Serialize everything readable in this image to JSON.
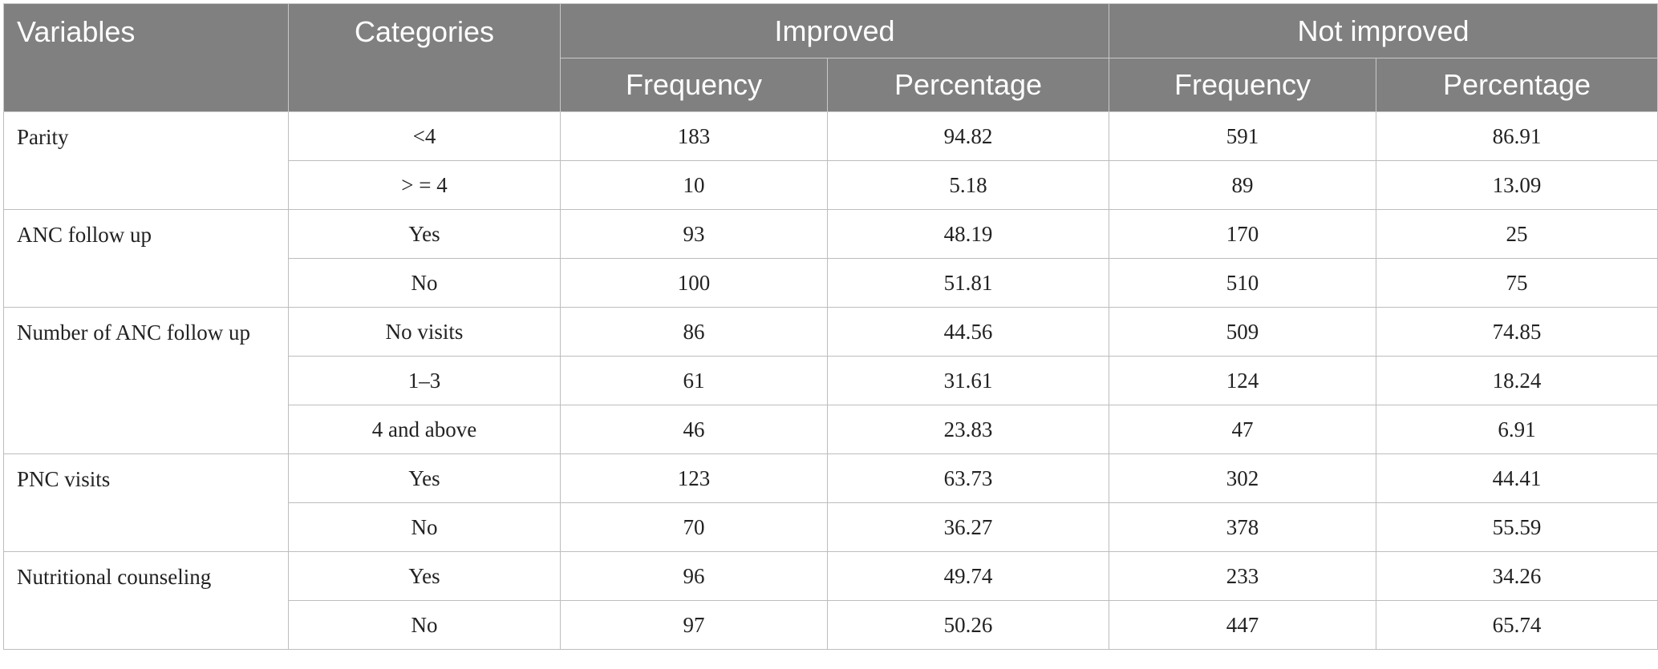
{
  "table": {
    "headers": {
      "variables": "Variables",
      "categories": "Categories",
      "improved": "Improved",
      "not_improved": "Not improved",
      "frequency": "Frequency",
      "percentage": "Percentage"
    },
    "groups": [
      {
        "variable": "Parity",
        "rows": [
          {
            "category": "<4",
            "imp_freq": "183",
            "imp_pct": "94.82",
            "not_freq": "591",
            "not_pct": "86.91"
          },
          {
            "category": "> = 4",
            "imp_freq": "10",
            "imp_pct": "5.18",
            "not_freq": "89",
            "not_pct": "13.09"
          }
        ]
      },
      {
        "variable": "ANC follow up",
        "rows": [
          {
            "category": "Yes",
            "imp_freq": "93",
            "imp_pct": "48.19",
            "not_freq": "170",
            "not_pct": "25"
          },
          {
            "category": "No",
            "imp_freq": "100",
            "imp_pct": "51.81",
            "not_freq": "510",
            "not_pct": "75"
          }
        ]
      },
      {
        "variable": "Number of ANC follow up",
        "rows": [
          {
            "category": "No visits",
            "imp_freq": "86",
            "imp_pct": "44.56",
            "not_freq": "509",
            "not_pct": "74.85"
          },
          {
            "category": "1–3",
            "imp_freq": "61",
            "imp_pct": "31.61",
            "not_freq": "124",
            "not_pct": "18.24"
          },
          {
            "category": "4 and above",
            "imp_freq": "46",
            "imp_pct": "23.83",
            "not_freq": "47",
            "not_pct": "6.91"
          }
        ]
      },
      {
        "variable": "PNC visits",
        "rows": [
          {
            "category": "Yes",
            "imp_freq": "123",
            "imp_pct": "63.73",
            "not_freq": "302",
            "not_pct": "44.41"
          },
          {
            "category": "No",
            "imp_freq": "70",
            "imp_pct": "36.27",
            "not_freq": "378",
            "not_pct": "55.59"
          }
        ]
      },
      {
        "variable": "Nutritional counseling",
        "rows": [
          {
            "category": "Yes",
            "imp_freq": "96",
            "imp_pct": "49.74",
            "not_freq": "233",
            "not_pct": "34.26"
          },
          {
            "category": "No",
            "imp_freq": "97",
            "imp_pct": "50.26",
            "not_freq": "447",
            "not_pct": "65.74"
          }
        ]
      }
    ]
  }
}
